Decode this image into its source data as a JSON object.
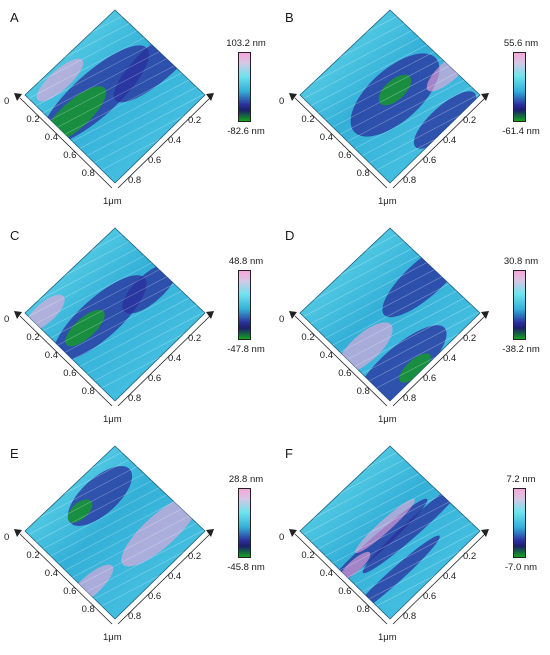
{
  "figure": {
    "panels": [
      {
        "letter": "A",
        "max": "103.2 nm",
        "min": "-82.6 nm"
      },
      {
        "letter": "B",
        "max": "55.6 nm",
        "min": "-61.4 nm"
      },
      {
        "letter": "C",
        "max": "48.8 nm",
        "min": "-47.8 nm"
      },
      {
        "letter": "D",
        "max": "30.8 nm",
        "min": "-38.2 nm"
      },
      {
        "letter": "E",
        "max": "28.8 nm",
        "min": "-45.8 nm"
      },
      {
        "letter": "F",
        "max": "7.2 nm",
        "min": "-7.0 nm"
      }
    ],
    "axis_ticks": {
      "left": [
        "0",
        "0.2",
        "0.4",
        "0.6",
        "0.8",
        "1μm"
      ],
      "right": [
        "0.2",
        "0.4",
        "0.6",
        "0.8"
      ]
    },
    "colors": {
      "high": "#f4a6d8",
      "mid": "#34b0d8",
      "low_mid": "#2a2f9c",
      "low": "#13a31e"
    }
  }
}
